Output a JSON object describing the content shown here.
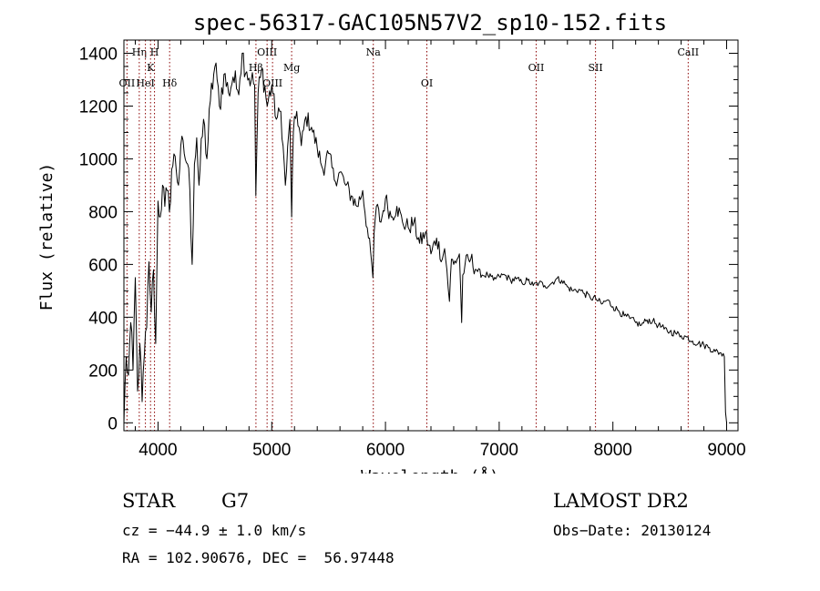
{
  "chart_data": {
    "type": "line",
    "title": "spec-56317-GAC105N57V2_sp10-152.fits",
    "xlabel": "Wavelength (Å)",
    "ylabel": "Flux (relative)",
    "xlim": [
      3700,
      9100
    ],
    "ylim": [
      -30,
      1450
    ],
    "xticks": [
      4000,
      5000,
      6000,
      7000,
      8000,
      9000
    ],
    "yticks": [
      0,
      200,
      400,
      600,
      800,
      1000,
      1200,
      1400
    ],
    "grid": false,
    "line_color": "#000000",
    "marker_color": "#8b0000",
    "series": [
      {
        "x": [
          3700,
          3720,
          3740,
          3760,
          3780,
          3800,
          3820,
          3840,
          3860,
          3880,
          3900,
          3920,
          3940,
          3960,
          3980,
          4000,
          4020,
          4040,
          4060,
          4080,
          4100,
          4120,
          4150,
          4180,
          4200,
          4230,
          4260,
          4280,
          4300,
          4320,
          4340,
          4360,
          4400,
          4430,
          4460,
          4500,
          4520,
          4540,
          4580,
          4620,
          4660,
          4700,
          4740,
          4780,
          4820,
          4850,
          4860,
          4880,
          4920,
          4960,
          5000,
          5040,
          5080,
          5120,
          5160,
          5175,
          5190,
          5220,
          5260,
          5300,
          5350,
          5400,
          5450,
          5500,
          5550,
          5600,
          5650,
          5700,
          5750,
          5800,
          5850,
          5880,
          5890,
          5900,
          5920,
          5960,
          6000,
          6050,
          6100,
          6150,
          6200,
          6250,
          6300,
          6350,
          6400,
          6450,
          6500,
          6520,
          6540,
          6563,
          6580,
          6600,
          6650,
          6670,
          6680,
          6700,
          6750,
          6800,
          6850,
          6900,
          6950,
          7000,
          7050,
          7100,
          7150,
          7200,
          7250,
          7300,
          7350,
          7400,
          7450,
          7500,
          7550,
          7600,
          7650,
          7700,
          7750,
          7800,
          7850,
          7900,
          7950,
          8000,
          8050,
          8100,
          8150,
          8200,
          8250,
          8300,
          8350,
          8400,
          8450,
          8500,
          8550,
          8600,
          8650,
          8700,
          8750,
          8800,
          8850,
          8900,
          8950,
          8980,
          8990,
          9000
        ],
        "y": [
          0,
          250,
          180,
          380,
          200,
          550,
          120,
          300,
          80,
          260,
          360,
          610,
          420,
          580,
          300,
          840,
          780,
          900,
          820,
          880,
          800,
          960,
          1010,
          900,
          1050,
          1020,
          980,
          880,
          600,
          980,
          1080,
          900,
          1150,
          1000,
          1220,
          1350,
          1300,
          1200,
          1320,
          1250,
          1310,
          1260,
          1400,
          1330,
          1300,
          1280,
          860,
          1250,
          1340,
          1200,
          1280,
          1150,
          1180,
          900,
          1150,
          780,
          1100,
          1180,
          1050,
          1160,
          1120,
          1040,
          960,
          1020,
          920,
          950,
          900,
          860,
          820,
          880,
          700,
          600,
          550,
          720,
          820,
          760,
          850,
          780,
          820,
          760,
          740,
          760,
          680,
          720,
          640,
          700,
          620,
          660,
          580,
          460,
          620,
          600,
          640,
          380,
          560,
          600,
          620,
          580,
          560,
          560,
          540,
          555,
          560,
          540,
          545,
          530,
          540,
          520,
          530,
          520,
          525,
          545,
          540,
          515,
          500,
          505,
          490,
          475,
          470,
          450,
          465,
          440,
          425,
          405,
          395,
          380,
          370,
          390,
          385,
          370,
          355,
          345,
          340,
          330,
          325,
          310,
          300,
          295,
          285,
          270,
          265,
          250,
          40,
          0
        ]
      }
    ],
    "line_markers": [
      {
        "label": "OII",
        "x": 3727,
        "row": 3
      },
      {
        "label": "Hη",
        "x": 3835,
        "row": 1
      },
      {
        "label": "HeI",
        "x": 3889,
        "row": 3
      },
      {
        "label": "K",
        "x": 3934,
        "row": 2
      },
      {
        "label": "H",
        "x": 3969,
        "row": 1
      },
      {
        "label": "Hδ",
        "x": 4102,
        "row": 3
      },
      {
        "label": "Hβ",
        "x": 4861,
        "row": 2
      },
      {
        "label": "OIII",
        "x": 4959,
        "row": 1
      },
      {
        "label": "OIII",
        "x": 5007,
        "row": 3
      },
      {
        "label": "Mg",
        "x": 5175,
        "row": 2
      },
      {
        "label": "Na",
        "x": 5893,
        "row": 1
      },
      {
        "label": "OI",
        "x": 6364,
        "row": 3
      },
      {
        "label": "OII",
        "x": 7325,
        "row": 2
      },
      {
        "label": "SII",
        "x": 7847,
        "row": 2
      },
      {
        "label": "CaII",
        "x": 8662,
        "row": 1
      }
    ]
  },
  "info": {
    "class": "STAR",
    "subclass": "G7",
    "survey": "LAMOST DR2",
    "cz": "cz = −44.9 ± 1.0 km/s",
    "obs_date": "Obs−Date: 20130124",
    "radec": "RA = 102.90676, DEC =  56.97448"
  }
}
